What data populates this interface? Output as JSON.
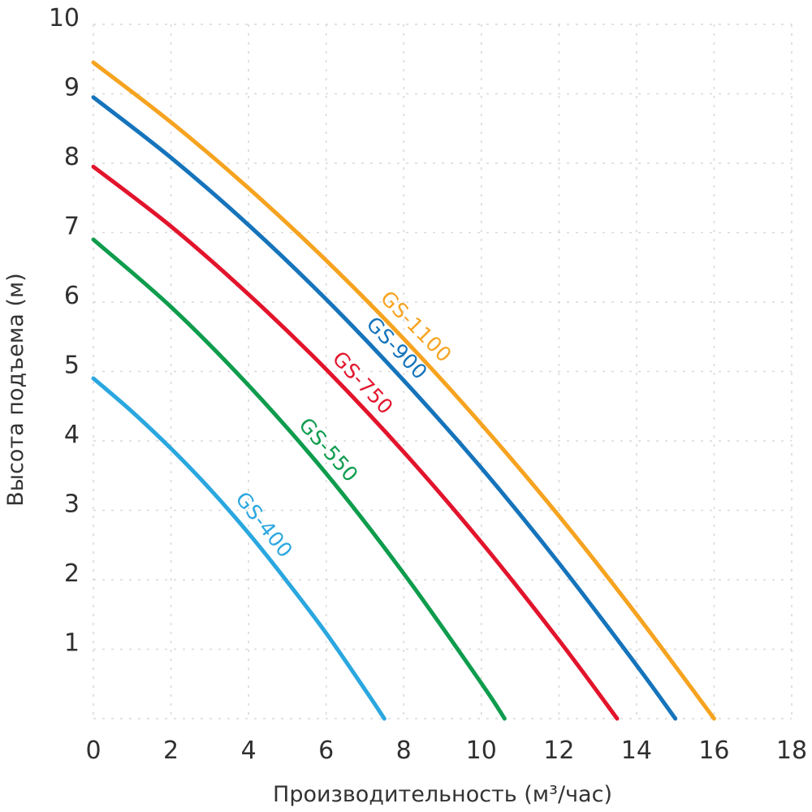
{
  "chart_data": {
    "type": "line",
    "title": "",
    "xlabel": "Производительность (м³/час)",
    "ylabel": "Высота подъема (м)",
    "xlim": [
      0,
      18
    ],
    "ylim": [
      0,
      10
    ],
    "x_ticks": [
      0,
      2,
      4,
      6,
      8,
      10,
      12,
      14,
      16,
      18
    ],
    "y_ticks": [
      1,
      2,
      3,
      4,
      5,
      6,
      7,
      8,
      9,
      10
    ],
    "y_gridlines": [
      0,
      1,
      2,
      3,
      4,
      5,
      6,
      7,
      8,
      9,
      10
    ],
    "grid": "dashed",
    "grid_color": "#d9d9d9",
    "axis_text_color": "#303030",
    "background": "#ffffff",
    "legend_position": "labels-on-curves",
    "series": [
      {
        "name": "GS-400",
        "color": "#2aa7df",
        "head_at_zero_flow_m": 4.9,
        "max_flow_m3h": 7.5,
        "label_at_fraction": 0.54,
        "points": [
          [
            0,
            4.9
          ],
          [
            1,
            4.42
          ],
          [
            2,
            3.89
          ],
          [
            3,
            3.31
          ],
          [
            4,
            2.67
          ],
          [
            5,
            1.97
          ],
          [
            6,
            1.23
          ],
          [
            7,
            0.42
          ],
          [
            7.5,
            0
          ]
        ]
      },
      {
        "name": "GS-550",
        "color": "#0e9c4d",
        "head_at_zero_flow_m": 6.9,
        "max_flow_m3h": 10.6,
        "label_at_fraction": 0.54,
        "points": [
          [
            0,
            6.9
          ],
          [
            2,
            5.93
          ],
          [
            4,
            4.8
          ],
          [
            6,
            3.53
          ],
          [
            8,
            2.09
          ],
          [
            10,
            0.51
          ],
          [
            10.6,
            0
          ]
        ]
      },
      {
        "name": "GS-750",
        "color": "#e2142c",
        "head_at_zero_flow_m": 7.95,
        "max_flow_m3h": 13.5,
        "label_at_fraction": 0.49,
        "points": [
          [
            0,
            7.95
          ],
          [
            2,
            7.09
          ],
          [
            4,
            6.11
          ],
          [
            6,
            5.03
          ],
          [
            8,
            3.84
          ],
          [
            10,
            2.54
          ],
          [
            12,
            1.13
          ],
          [
            13.5,
            0
          ]
        ]
      },
      {
        "name": "GS-900",
        "color": "#1574bb",
        "head_at_zero_flow_m": 8.95,
        "max_flow_m3h": 15.0,
        "label_at_fraction": 0.5,
        "points": [
          [
            0,
            8.95
          ],
          [
            2,
            8.08
          ],
          [
            4,
            7.11
          ],
          [
            6,
            6.04
          ],
          [
            8,
            4.87
          ],
          [
            10,
            3.61
          ],
          [
            12,
            2.24
          ],
          [
            14,
            0.77
          ],
          [
            15,
            0
          ]
        ]
      },
      {
        "name": "GS-1100",
        "color": "#f6a320",
        "head_at_zero_flow_m": 9.45,
        "max_flow_m3h": 16.0,
        "label_at_fraction": 0.5,
        "points": [
          [
            0,
            9.45
          ],
          [
            2,
            8.59
          ],
          [
            4,
            7.64
          ],
          [
            6,
            6.6
          ],
          [
            8,
            5.47
          ],
          [
            10,
            4.24
          ],
          [
            12,
            2.92
          ],
          [
            14,
            1.5
          ],
          [
            16,
            0
          ]
        ]
      }
    ]
  }
}
